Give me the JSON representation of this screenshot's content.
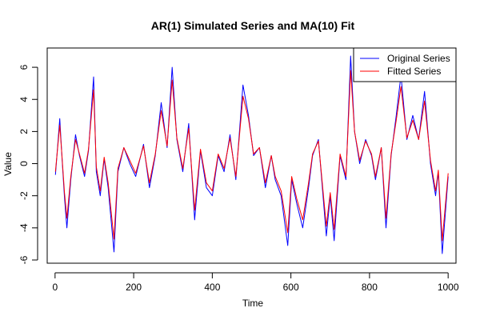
{
  "chart_data": {
    "type": "line",
    "title": "AR(1) Simulated Series and MA(10) Fit",
    "xlabel": "Time",
    "ylabel": "Value",
    "xlim": [
      -20,
      1020
    ],
    "ylim": [
      -6.2,
      7.2
    ],
    "x_ticks": [
      0,
      200,
      400,
      600,
      800,
      1000
    ],
    "y_ticks": [
      -6,
      -4,
      -2,
      0,
      2,
      4,
      6
    ],
    "legend_position": "top-right",
    "series": [
      {
        "name": "Original Series",
        "color": "#0000ff",
        "x": [
          1,
          12,
          18,
          24,
          30,
          40,
          52,
          62,
          75,
          85,
          98,
          105,
          115,
          125,
          135,
          150,
          160,
          175,
          190,
          205,
          225,
          240,
          255,
          270,
          285,
          298,
          310,
          325,
          340,
          355,
          370,
          385,
          400,
          415,
          430,
          445,
          460,
          478,
          492,
          505,
          520,
          535,
          550,
          560,
          575,
          592,
          602,
          615,
          630,
          645,
          655,
          670,
          690,
          700,
          710,
          725,
          740,
          752,
          762,
          775,
          790,
          805,
          815,
          830,
          842,
          855,
          868,
          880,
          895,
          910,
          925,
          940,
          955,
          968,
          975,
          985,
          1000
        ],
        "y": [
          -0.7,
          2.8,
          0.2,
          -2.1,
          -4.0,
          -1.0,
          1.8,
          0.5,
          -0.8,
          0.8,
          5.4,
          -0.5,
          -2.0,
          0.3,
          -1.5,
          -5.5,
          -0.5,
          1.0,
          0.0,
          -0.8,
          1.2,
          -1.5,
          0.5,
          3.8,
          1.0,
          6.0,
          1.5,
          -0.5,
          2.5,
          -3.5,
          0.8,
          -1.5,
          -2.0,
          0.5,
          -0.5,
          1.8,
          -1.0,
          4.9,
          3.0,
          0.5,
          1.0,
          -1.5,
          0.5,
          -1.0,
          -2.0,
          -5.1,
          -1.0,
          -2.5,
          -4.0,
          -1.5,
          0.5,
          1.5,
          -4.5,
          -2.0,
          -4.8,
          0.5,
          -1.0,
          6.7,
          2.0,
          0.0,
          1.5,
          0.5,
          -1.0,
          1.0,
          -4.0,
          0.5,
          3.0,
          5.5,
          1.5,
          3.0,
          1.5,
          4.5,
          0.0,
          -2.0,
          -0.5,
          -5.6,
          -0.8
        ]
      },
      {
        "name": "Fitted Series",
        "color": "#ff0000",
        "x": [
          1,
          12,
          18,
          24,
          30,
          40,
          52,
          62,
          75,
          85,
          98,
          105,
          115,
          125,
          135,
          150,
          160,
          175,
          190,
          205,
          225,
          240,
          255,
          270,
          285,
          298,
          310,
          325,
          340,
          355,
          370,
          385,
          400,
          415,
          430,
          445,
          460,
          478,
          492,
          505,
          520,
          535,
          550,
          560,
          575,
          592,
          602,
          615,
          630,
          645,
          655,
          670,
          690,
          700,
          710,
          725,
          740,
          752,
          762,
          775,
          790,
          805,
          815,
          830,
          842,
          855,
          868,
          880,
          895,
          910,
          925,
          940,
          955,
          968,
          975,
          985,
          1000
        ],
        "y": [
          -0.5,
          2.4,
          0.3,
          -1.8,
          -3.4,
          -0.8,
          1.5,
          0.6,
          -0.6,
          0.9,
          4.6,
          -0.2,
          -1.7,
          0.4,
          -1.2,
          -4.7,
          -0.3,
          1.0,
          0.2,
          -0.6,
          1.1,
          -1.2,
          0.6,
          3.3,
          1.1,
          5.2,
          1.6,
          -0.3,
          2.2,
          -2.9,
          0.9,
          -1.2,
          -1.7,
          0.6,
          -0.3,
          1.6,
          -0.8,
          4.2,
          2.8,
          0.6,
          1.0,
          -1.2,
          0.5,
          -0.8,
          -1.7,
          -4.3,
          -0.8,
          -2.2,
          -3.5,
          -1.2,
          0.6,
          1.4,
          -3.9,
          -1.8,
          -4.1,
          0.6,
          -0.8,
          5.8,
          2.0,
          0.2,
          1.4,
          0.6,
          -0.8,
          1.0,
          -3.4,
          0.6,
          2.7,
          4.8,
          1.6,
          2.7,
          1.5,
          3.9,
          0.2,
          -1.7,
          -0.4,
          -4.8,
          -0.6
        ]
      }
    ]
  }
}
